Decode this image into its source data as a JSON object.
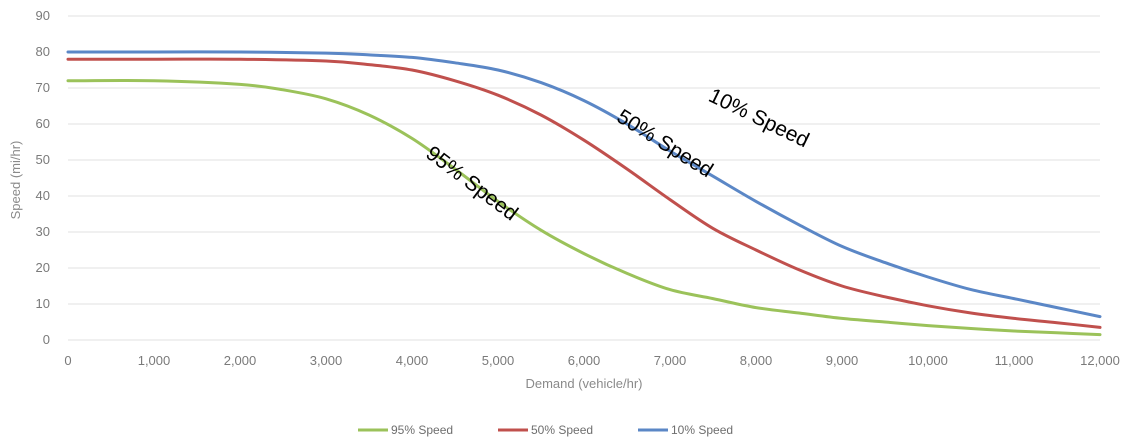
{
  "chart_data": {
    "type": "line",
    "xlabel": "Demand (vehicle/hr)",
    "ylabel": "Speed (mi/hr)",
    "xlim": [
      0,
      12000
    ],
    "ylim": [
      0,
      90
    ],
    "x_ticks": [
      0,
      1000,
      2000,
      3000,
      4000,
      5000,
      6000,
      7000,
      8000,
      9000,
      10000,
      11000,
      12000
    ],
    "x_tick_labels": [
      "0",
      "1,000",
      "2,000",
      "3,000",
      "4,000",
      "5,000",
      "6,000",
      "7,000",
      "8,000",
      "9,000",
      "10,000",
      "11,000",
      "12,000"
    ],
    "y_ticks": [
      0,
      10,
      20,
      30,
      40,
      50,
      60,
      70,
      80,
      90
    ],
    "grid": "horizontal",
    "legend_position": "bottom",
    "series": [
      {
        "name": "95% Speed",
        "color": "#9bc25a",
        "x": [
          0,
          1000,
          2000,
          2500,
          3000,
          3500,
          4000,
          4500,
          5000,
          5500,
          6000,
          6500,
          7000,
          7500,
          8000,
          8500,
          9000,
          9500,
          10000,
          10500,
          11000,
          11500,
          12000
        ],
        "y": [
          72,
          72,
          71,
          69.5,
          67,
          62.5,
          56,
          47.5,
          38.5,
          30.5,
          24,
          18.5,
          14,
          11.5,
          9,
          7.5,
          6,
          5,
          4,
          3.2,
          2.5,
          2,
          1.5
        ]
      },
      {
        "name": "50% Speed",
        "color": "#c0504d",
        "x": [
          0,
          1000,
          2000,
          3000,
          3500,
          4000,
          4500,
          5000,
          5500,
          6000,
          6500,
          7000,
          7500,
          8000,
          8500,
          9000,
          9500,
          10000,
          10500,
          11000,
          11500,
          12000
        ],
        "y": [
          78,
          78,
          78,
          77.5,
          76.5,
          75,
          72,
          68,
          62.5,
          55.5,
          47.5,
          39,
          31,
          25,
          19.5,
          15,
          12,
          9.5,
          7.5,
          6,
          4.8,
          3.5
        ]
      },
      {
        "name": "10% Speed",
        "color": "#5b87c6",
        "x": [
          0,
          1000,
          2000,
          3000,
          3500,
          4000,
          4500,
          5000,
          5500,
          6000,
          6500,
          7000,
          7500,
          8000,
          8500,
          9000,
          9500,
          10000,
          10500,
          11000,
          11500,
          12000
        ],
        "y": [
          80,
          80,
          80,
          79.7,
          79.2,
          78.5,
          77,
          75,
          71.5,
          66.5,
          60,
          52.5,
          45.5,
          38.5,
          32,
          26,
          21.5,
          17.5,
          14,
          11.5,
          9,
          6.5
        ]
      }
    ],
    "annotations": [
      {
        "text": "95% Speed",
        "x": 4650,
        "y": 42,
        "angle": 37
      },
      {
        "text": "50% Speed",
        "x": 6900,
        "y": 53,
        "angle": 32
      },
      {
        "text": "10% Speed",
        "x": 8000,
        "y": 60,
        "angle": 26
      }
    ]
  }
}
